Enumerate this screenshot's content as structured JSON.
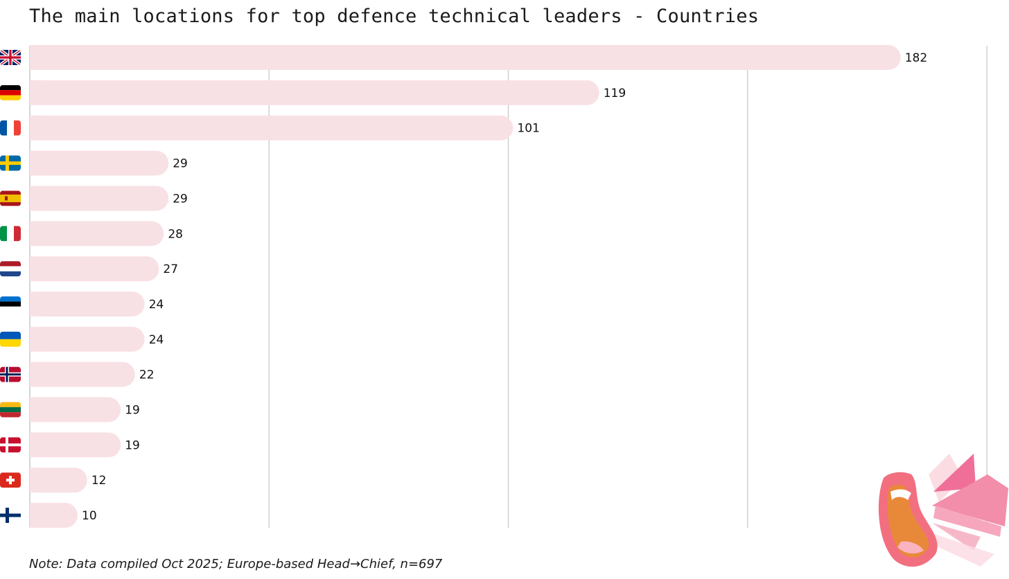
{
  "chart_data": {
    "type": "bar",
    "orientation": "horizontal",
    "title": "The main locations for top defence technical leaders - Countries",
    "categories": [
      "United Kingdom",
      "Germany",
      "France",
      "Sweden",
      "Spain",
      "Italy",
      "Netherlands",
      "Estonia",
      "Ukraine",
      "Norway",
      "Lithuania",
      "Denmark",
      "Switzerland",
      "Finland"
    ],
    "flags": [
      "gb",
      "de",
      "fr",
      "se",
      "es",
      "it",
      "nl",
      "ee",
      "ua",
      "no",
      "lt",
      "dk",
      "ch",
      "fi"
    ],
    "values": [
      182,
      119,
      101,
      29,
      29,
      28,
      27,
      24,
      24,
      22,
      19,
      19,
      12,
      10
    ],
    "xlim": [
      0,
      200
    ],
    "grid": true,
    "bar_color": "#f8e1e5",
    "grid_color": "#c9c9c9"
  },
  "note": "Note: Data compiled Oct 2025; Europe-based Head→Chief, n=697"
}
